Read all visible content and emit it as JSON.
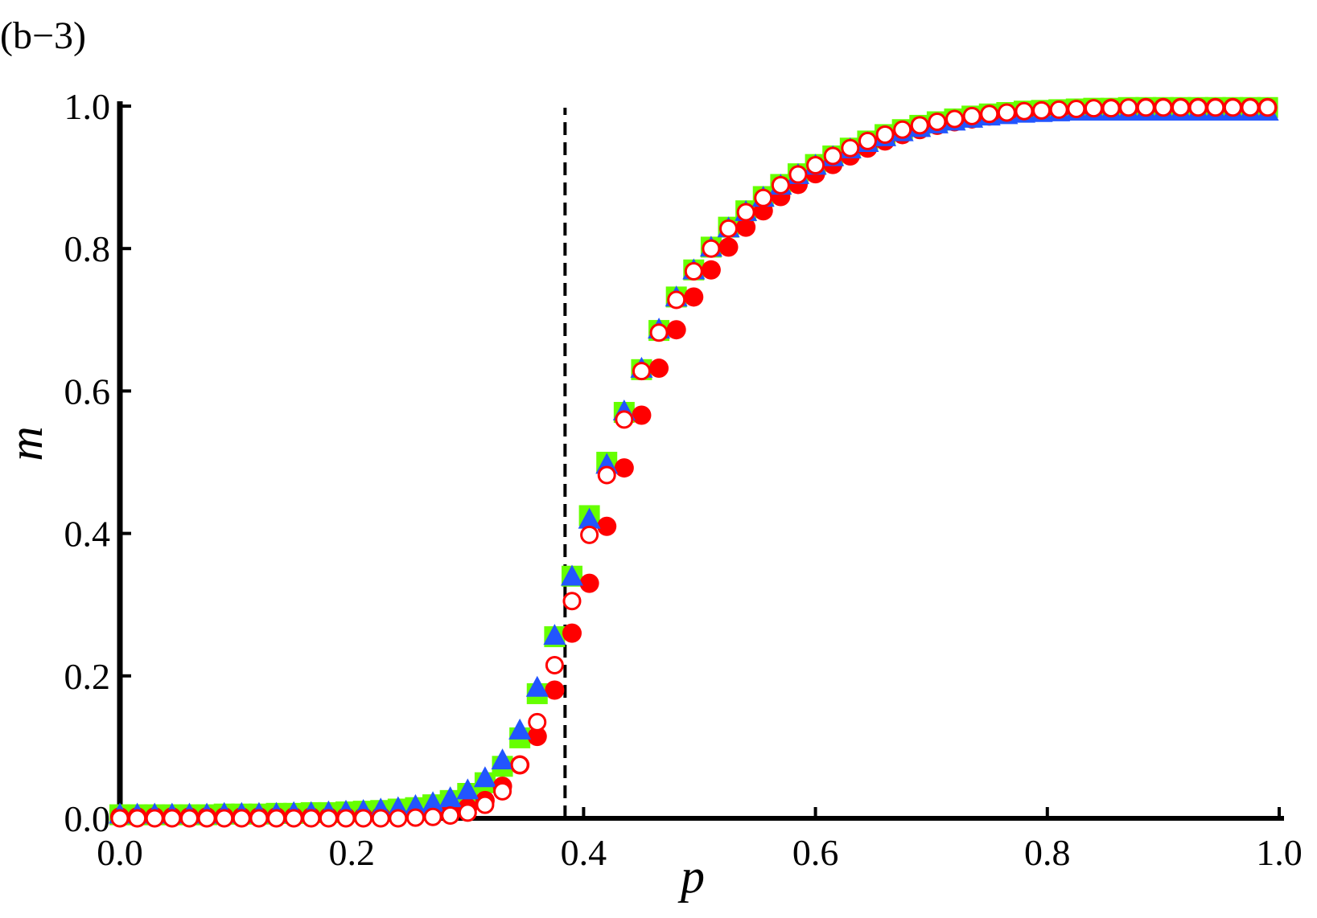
{
  "panel_label": "(b−3)",
  "chart_data": {
    "type": "scatter",
    "title": "",
    "xlabel": "p",
    "ylabel": "m",
    "xlim": [
      0,
      1
    ],
    "ylim": [
      0,
      1
    ],
    "x_ticks": [
      "0.0",
      "0.2",
      "0.4",
      "0.6",
      "0.8",
      "1.0"
    ],
    "y_ticks": [
      "0.0",
      "0.2",
      "0.4",
      "0.6",
      "0.8",
      "1.0"
    ],
    "grid": false,
    "legend": "none",
    "reference_line": {
      "axis": "x",
      "value": 0.384,
      "style": "dashed",
      "color": "#000000"
    },
    "x": [
      0.0,
      0.015,
      0.03,
      0.045,
      0.06,
      0.075,
      0.09,
      0.105,
      0.12,
      0.135,
      0.15,
      0.165,
      0.18,
      0.195,
      0.21,
      0.225,
      0.24,
      0.255,
      0.27,
      0.285,
      0.3,
      0.315,
      0.33,
      0.345,
      0.36,
      0.375,
      0.39,
      0.405,
      0.42,
      0.435,
      0.45,
      0.465,
      0.48,
      0.495,
      0.51,
      0.525,
      0.54,
      0.555,
      0.57,
      0.585,
      0.6,
      0.615,
      0.63,
      0.645,
      0.66,
      0.675,
      0.69,
      0.705,
      0.72,
      0.735,
      0.75,
      0.765,
      0.78,
      0.795,
      0.81,
      0.825,
      0.84,
      0.855,
      0.87,
      0.885,
      0.9,
      0.915,
      0.93,
      0.945,
      0.96,
      0.975,
      0.99
    ],
    "series": [
      {
        "marker": "square",
        "color": "#66ff00",
        "values": [
          0.005,
          0.005,
          0.005,
          0.005,
          0.005,
          0.005,
          0.006,
          0.006,
          0.006,
          0.007,
          0.007,
          0.008,
          0.008,
          0.009,
          0.01,
          0.011,
          0.013,
          0.015,
          0.019,
          0.025,
          0.035,
          0.05,
          0.073,
          0.113,
          0.175,
          0.255,
          0.34,
          0.425,
          0.5,
          0.57,
          0.63,
          0.685,
          0.732,
          0.77,
          0.802,
          0.83,
          0.853,
          0.873,
          0.89,
          0.905,
          0.918,
          0.93,
          0.941,
          0.951,
          0.96,
          0.967,
          0.973,
          0.978,
          0.982,
          0.986,
          0.989,
          0.991,
          0.993,
          0.994,
          0.995,
          0.996,
          0.997,
          0.997,
          0.998,
          0.998,
          0.998,
          0.998,
          0.998,
          0.998,
          0.998,
          0.998,
          0.998
        ]
      },
      {
        "marker": "filled-circle",
        "color": "#ff0000",
        "values": [
          0.002,
          0.002,
          0.002,
          0.002,
          0.002,
          0.002,
          0.002,
          0.002,
          0.002,
          0.002,
          0.002,
          0.002,
          0.002,
          0.002,
          0.002,
          0.003,
          0.003,
          0.004,
          0.006,
          0.009,
          0.015,
          0.025,
          0.045,
          0.075,
          0.115,
          0.18,
          0.26,
          0.33,
          0.41,
          0.492,
          0.566,
          0.632,
          0.686,
          0.732,
          0.77,
          0.802,
          0.83,
          0.853,
          0.873,
          0.89,
          0.905,
          0.918,
          0.93,
          0.941,
          0.951,
          0.96,
          0.967,
          0.973,
          0.978,
          0.982,
          0.986,
          0.989,
          0.991,
          0.993,
          0.994,
          0.995,
          0.996,
          0.997,
          0.997,
          0.998,
          0.998,
          0.998,
          0.998,
          0.998,
          0.998,
          0.998,
          0.998
        ]
      },
      {
        "marker": "triangle",
        "color": "#2255ff",
        "values": [
          0.004,
          0.004,
          0.004,
          0.004,
          0.004,
          0.004,
          0.005,
          0.005,
          0.005,
          0.005,
          0.006,
          0.006,
          0.007,
          0.008,
          0.009,
          0.011,
          0.013,
          0.016,
          0.02,
          0.027,
          0.038,
          0.055,
          0.08,
          0.122,
          0.182,
          0.255,
          0.338,
          0.418,
          0.495,
          0.57,
          0.63,
          0.685,
          0.73,
          0.768,
          0.8,
          0.827,
          0.85,
          0.87,
          0.887,
          0.902,
          0.915,
          0.927,
          0.938,
          0.947,
          0.955,
          0.962,
          0.968,
          0.973,
          0.977,
          0.981,
          0.984,
          0.986,
          0.988,
          0.989,
          0.99,
          0.991,
          0.991,
          0.991,
          0.991,
          0.991,
          0.991,
          0.991,
          0.991,
          0.991,
          0.991,
          0.991,
          0.991
        ]
      },
      {
        "marker": "open-circle",
        "color": "#ff0000",
        "values": [
          0.0,
          0.0,
          0.0,
          0.0,
          0.0,
          0.0,
          0.0,
          0.0,
          0.0,
          0.0,
          0.0,
          0.0,
          0.0,
          0.0,
          0.0,
          0.0,
          0.0,
          0.001,
          0.002,
          0.004,
          0.008,
          0.019,
          0.038,
          0.075,
          0.135,
          0.215,
          0.305,
          0.398,
          0.482,
          0.56,
          0.628,
          0.682,
          0.728,
          0.768,
          0.8,
          0.828,
          0.851,
          0.871,
          0.889,
          0.904,
          0.917,
          0.93,
          0.941,
          0.951,
          0.96,
          0.967,
          0.973,
          0.978,
          0.982,
          0.986,
          0.989,
          0.991,
          0.993,
          0.994,
          0.995,
          0.996,
          0.997,
          0.997,
          0.998,
          0.998,
          0.998,
          0.998,
          0.998,
          0.998,
          0.998,
          0.998,
          0.998
        ]
      }
    ]
  }
}
